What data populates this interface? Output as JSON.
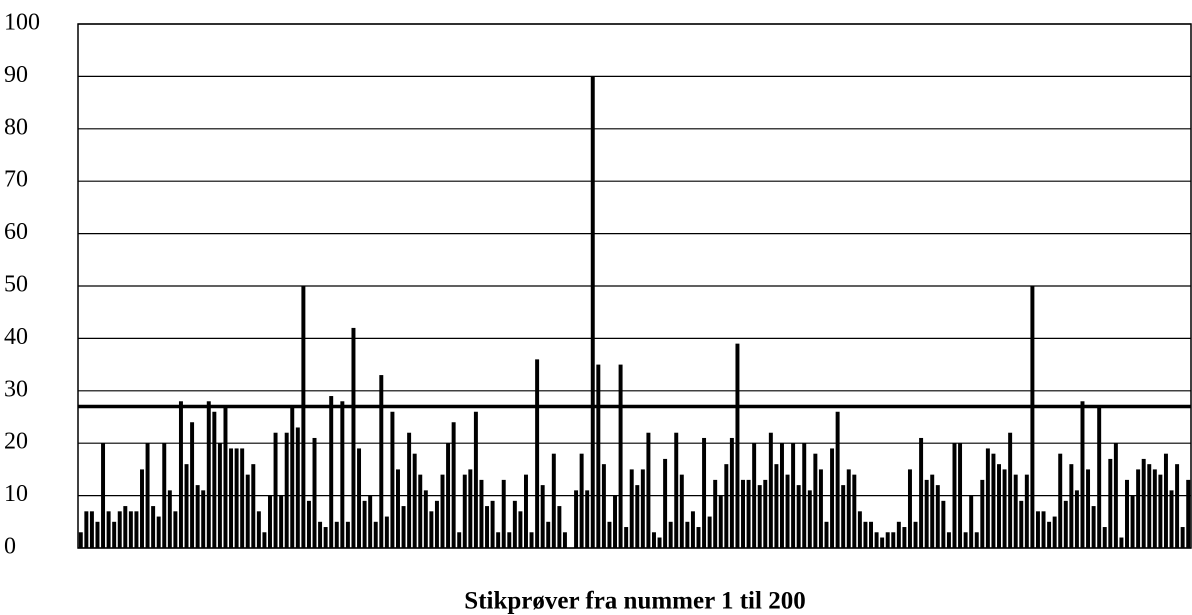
{
  "chart_data": {
    "type": "bar",
    "x_label": "Stikprøver fra nummer 1 til 200",
    "values": [
      3,
      7,
      7,
      5,
      20,
      7,
      5,
      7,
      8,
      7,
      7,
      15,
      20,
      8,
      6,
      20,
      11,
      7,
      28,
      16,
      24,
      12,
      11,
      28,
      26,
      20,
      27,
      19,
      19,
      19,
      14,
      16,
      7,
      3,
      10,
      22,
      10,
      22,
      27,
      23,
      50,
      9,
      21,
      5,
      4,
      29,
      5,
      28,
      5,
      42,
      19,
      9,
      10,
      5,
      33,
      6,
      26,
      15,
      8,
      22,
      18,
      14,
      11,
      7,
      9,
      14,
      20,
      24,
      3,
      14,
      15,
      26,
      13,
      8,
      9,
      3,
      13,
      3,
      9,
      7,
      14,
      3,
      36,
      12,
      5,
      18,
      8,
      3,
      0,
      11,
      18,
      11,
      90,
      35,
      16,
      5,
      10,
      35,
      4,
      15,
      12,
      15,
      22,
      3,
      2,
      17,
      5,
      22,
      14,
      5,
      7,
      4,
      21,
      6,
      13,
      10,
      16,
      21,
      39,
      13,
      13,
      20,
      12,
      13,
      22,
      16,
      20,
      14,
      20,
      12,
      20,
      11,
      18,
      15,
      5,
      19,
      26,
      12,
      15,
      14,
      7,
      5,
      5,
      3,
      2,
      3,
      3,
      5,
      4,
      15,
      5,
      21,
      13,
      14,
      12,
      9,
      3,
      20,
      20,
      3,
      10,
      3,
      13,
      19,
      18,
      16,
      15,
      22,
      14,
      9,
      14,
      50,
      7,
      7,
      5,
      6,
      18,
      9,
      16,
      11,
      28,
      15,
      8,
      27,
      4,
      17,
      20,
      2,
      13,
      10,
      15,
      17,
      16,
      15,
      14,
      18,
      11,
      16,
      4,
      13
    ],
    "color": "#000000",
    "reference_line": 27,
    "ylim": [
      0,
      100
    ],
    "yticks": [
      0,
      10,
      20,
      30,
      40,
      50,
      60,
      70,
      80,
      90,
      100
    ],
    "grid": true
  }
}
